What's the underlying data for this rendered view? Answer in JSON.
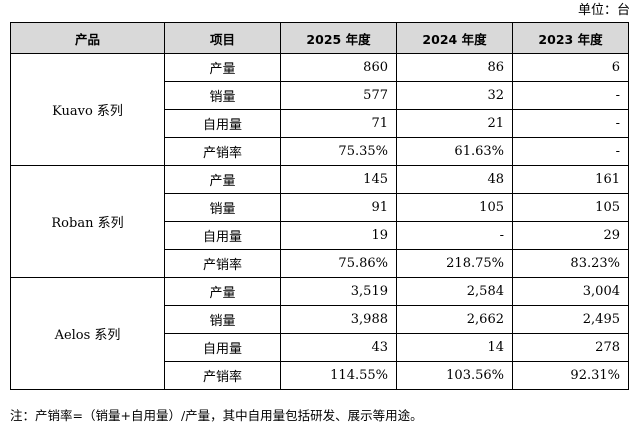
{
  "unit_label": "单位：台",
  "headers": [
    "产品",
    "项目",
    "2025 年度",
    "2024 年度",
    "2023 年度"
  ],
  "groups": [
    {
      "name": "Kuavo 系列",
      "rows": [
        {
          "item": "产量",
          "v2025": "860",
          "v2024": "86",
          "v2023": "6"
        },
        {
          "item": "销量",
          "v2025": "577",
          "v2024": "32",
          "v2023": "-"
        },
        {
          "item": "自用量",
          "v2025": "71",
          "v2024": "21",
          "v2023": "-"
        },
        {
          "item": "产销率",
          "v2025": "75.35%",
          "v2024": "61.63%",
          "v2023": "-"
        }
      ]
    },
    {
      "name": "Roban 系列",
      "rows": [
        {
          "item": "产量",
          "v2025": "145",
          "v2024": "48",
          "v2023": "161"
        },
        {
          "item": "销量",
          "v2025": "91",
          "v2024": "105",
          "v2023": "105"
        },
        {
          "item": "自用量",
          "v2025": "19",
          "v2024": "-",
          "v2023": "29"
        },
        {
          "item": "产销率",
          "v2025": "75.86%",
          "v2024": "218.75%",
          "v2023": "83.23%"
        }
      ]
    },
    {
      "name": "Aelos 系列",
      "rows": [
        {
          "item": "产量",
          "v2025": "3,519",
          "v2024": "2,584",
          "v2023": "3,004"
        },
        {
          "item": "销量",
          "v2025": "3,988",
          "v2024": "2,662",
          "v2023": "2,495"
        },
        {
          "item": "自用量",
          "v2025": "43",
          "v2024": "14",
          "v2023": "278"
        },
        {
          "item": "产销率",
          "v2025": "114.55%",
          "v2024": "103.56%",
          "v2023": "92.31%"
        }
      ]
    }
  ],
  "note": "注：产销率=（销量+自用量）/产量，其中自用量包括研发、展示等用途。"
}
